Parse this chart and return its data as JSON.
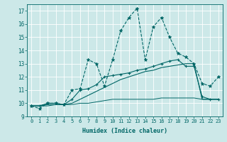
{
  "xlabel": "Humidex (Indice chaleur)",
  "bg_color": "#cce8e8",
  "grid_color": "#ffffff",
  "line_color": "#006666",
  "x_values": [
    0,
    1,
    2,
    3,
    4,
    5,
    6,
    7,
    8,
    9,
    10,
    11,
    12,
    13,
    14,
    15,
    16,
    17,
    18,
    19,
    20,
    21,
    22,
    23
  ],
  "line1_jagged": [
    9.8,
    9.6,
    10.0,
    10.0,
    9.9,
    11.0,
    11.1,
    13.3,
    13.0,
    11.3,
    13.3,
    15.5,
    16.5,
    17.2,
    13.3,
    15.8,
    16.5,
    15.0,
    13.8,
    13.5,
    13.0,
    11.5,
    11.3,
    12.0
  ],
  "line2_rise": [
    9.8,
    9.8,
    10.0,
    10.0,
    9.9,
    10.3,
    11.0,
    11.1,
    11.4,
    12.0,
    12.1,
    12.2,
    12.3,
    12.5,
    12.6,
    12.8,
    13.0,
    13.2,
    13.3,
    12.8,
    12.8,
    10.5,
    10.3,
    10.3
  ],
  "line3_rise": [
    9.8,
    9.8,
    9.9,
    9.9,
    9.9,
    10.0,
    10.3,
    10.6,
    10.9,
    11.2,
    11.5,
    11.8,
    12.0,
    12.2,
    12.4,
    12.5,
    12.7,
    12.8,
    12.9,
    13.0,
    13.0,
    10.3,
    10.3,
    10.3
  ],
  "line4_flat": [
    9.8,
    9.8,
    9.8,
    9.9,
    9.9,
    9.9,
    10.0,
    10.0,
    10.1,
    10.2,
    10.3,
    10.3,
    10.3,
    10.3,
    10.3,
    10.3,
    10.4,
    10.4,
    10.4,
    10.4,
    10.4,
    10.3,
    10.3,
    10.3
  ],
  "ylim": [
    9.0,
    17.5
  ],
  "xlim": [
    -0.5,
    23.5
  ],
  "yticks": [
    9,
    10,
    11,
    12,
    13,
    14,
    15,
    16,
    17
  ],
  "xtick_labels": [
    "0",
    "1",
    "2",
    "3",
    "4",
    "5",
    "6",
    "7",
    "8",
    "9",
    "10",
    "11",
    "12",
    "13",
    "14",
    "15",
    "16",
    "17",
    "18",
    "19",
    "20",
    "21",
    "22",
    "23"
  ]
}
